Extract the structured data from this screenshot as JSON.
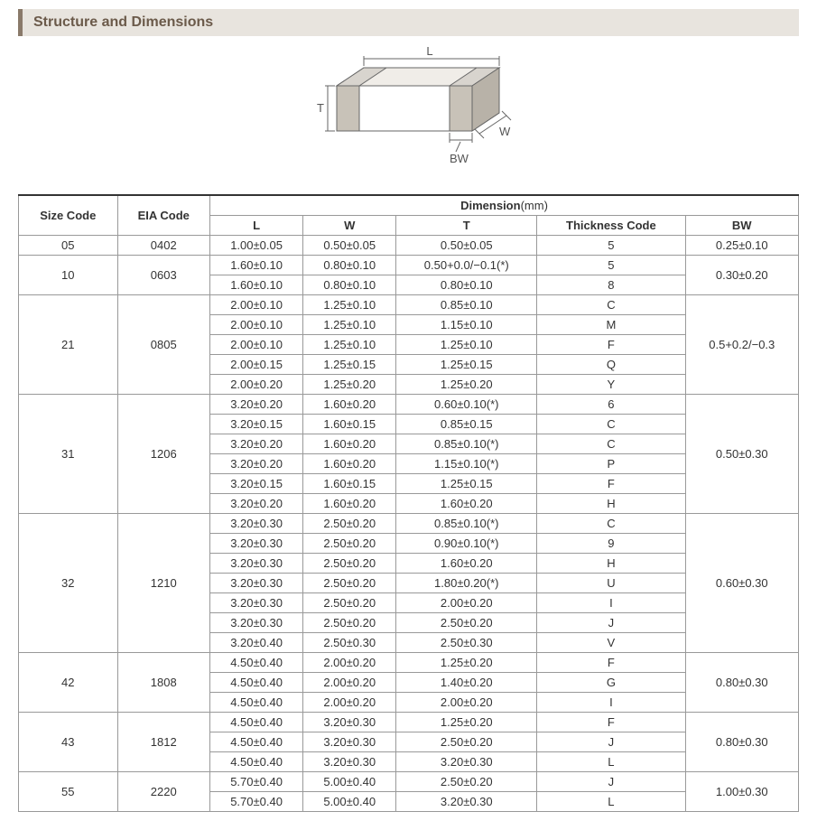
{
  "section_title": "Structure and Dimensions",
  "diagram": {
    "labels": {
      "L": "L",
      "W": "W",
      "T": "T",
      "BW": "BW"
    },
    "stroke_color": "#666666",
    "fill_color": "#f0ede8",
    "text_color": "#555555"
  },
  "table": {
    "headers": {
      "size_code": "Size Code",
      "eia_code": "EIA Code",
      "dimension_group": "Dimension",
      "dimension_unit": "(mm)",
      "L": "L",
      "W": "W",
      "T": "T",
      "thickness_code": "Thickness Code",
      "BW": "BW"
    },
    "groups": [
      {
        "size_code": "05",
        "eia_code": "0402",
        "bw": "0.25±0.10",
        "rows": [
          {
            "L": "1.00±0.05",
            "W": "0.50±0.05",
            "T": "0.50±0.05",
            "tc": "5"
          }
        ]
      },
      {
        "size_code": "10",
        "eia_code": "0603",
        "bw": "0.30±0.20",
        "rows": [
          {
            "L": "1.60±0.10",
            "W": "0.80±0.10",
            "T": "0.50+0.0/−0.1(*)",
            "tc": "5"
          },
          {
            "L": "1.60±0.10",
            "W": "0.80±0.10",
            "T": "0.80±0.10",
            "tc": "8"
          }
        ]
      },
      {
        "size_code": "21",
        "eia_code": "0805",
        "bw": "0.5+0.2/−0.3",
        "rows": [
          {
            "L": "2.00±0.10",
            "W": "1.25±0.10",
            "T": "0.85±0.10",
            "tc": "C"
          },
          {
            "L": "2.00±0.10",
            "W": "1.25±0.10",
            "T": "1.15±0.10",
            "tc": "M"
          },
          {
            "L": "2.00±0.10",
            "W": "1.25±0.10",
            "T": "1.25±0.10",
            "tc": "F"
          },
          {
            "L": "2.00±0.15",
            "W": "1.25±0.15",
            "T": "1.25±0.15",
            "tc": "Q"
          },
          {
            "L": "2.00±0.20",
            "W": "1.25±0.20",
            "T": "1.25±0.20",
            "tc": "Y"
          }
        ]
      },
      {
        "size_code": "31",
        "eia_code": "1206",
        "bw": "0.50±0.30",
        "rows": [
          {
            "L": "3.20±0.20",
            "W": "1.60±0.20",
            "T": "0.60±0.10(*)",
            "tc": "6"
          },
          {
            "L": "3.20±0.15",
            "W": "1.60±0.15",
            "T": "0.85±0.15",
            "tc": "C"
          },
          {
            "L": "3.20±0.20",
            "W": "1.60±0.20",
            "T": "0.85±0.10(*)",
            "tc": "C"
          },
          {
            "L": "3.20±0.20",
            "W": "1.60±0.20",
            "T": "1.15±0.10(*)",
            "tc": "P"
          },
          {
            "L": "3.20±0.15",
            "W": "1.60±0.15",
            "T": "1.25±0.15",
            "tc": "F"
          },
          {
            "L": "3.20±0.20",
            "W": "1.60±0.20",
            "T": "1.60±0.20",
            "tc": "H"
          }
        ]
      },
      {
        "size_code": "32",
        "eia_code": "1210",
        "bw": "0.60±0.30",
        "rows": [
          {
            "L": "3.20±0.30",
            "W": "2.50±0.20",
            "T": "0.85±0.10(*)",
            "tc": "C"
          },
          {
            "L": "3.20±0.30",
            "W": "2.50±0.20",
            "T": "0.90±0.10(*)",
            "tc": "9"
          },
          {
            "L": "3.20±0.30",
            "W": "2.50±0.20",
            "T": "1.60±0.20",
            "tc": "H"
          },
          {
            "L": "3.20±0.30",
            "W": "2.50±0.20",
            "T": "1.80±0.20(*)",
            "tc": "U"
          },
          {
            "L": "3.20±0.30",
            "W": "2.50±0.20",
            "T": "2.00±0.20",
            "tc": "I"
          },
          {
            "L": "3.20±0.30",
            "W": "2.50±0.20",
            "T": "2.50±0.20",
            "tc": "J"
          },
          {
            "L": "3.20±0.40",
            "W": "2.50±0.30",
            "T": "2.50±0.30",
            "tc": "V"
          }
        ]
      },
      {
        "size_code": "42",
        "eia_code": "1808",
        "bw": "0.80±0.30",
        "rows": [
          {
            "L": "4.50±0.40",
            "W": "2.00±0.20",
            "T": "1.25±0.20",
            "tc": "F"
          },
          {
            "L": "4.50±0.40",
            "W": "2.00±0.20",
            "T": "1.40±0.20",
            "tc": "G"
          },
          {
            "L": "4.50±0.40",
            "W": "2.00±0.20",
            "T": "2.00±0.20",
            "tc": "I"
          }
        ]
      },
      {
        "size_code": "43",
        "eia_code": "1812",
        "bw": "0.80±0.30",
        "rows": [
          {
            "L": "4.50±0.40",
            "W": "3.20±0.30",
            "T": "1.25±0.20",
            "tc": "F"
          },
          {
            "L": "4.50±0.40",
            "W": "3.20±0.30",
            "T": "2.50±0.20",
            "tc": "J"
          },
          {
            "L": "4.50±0.40",
            "W": "3.20±0.30",
            "T": "3.20±0.30",
            "tc": "L"
          }
        ]
      },
      {
        "size_code": "55",
        "eia_code": "2220",
        "bw": "1.00±0.30",
        "rows": [
          {
            "L": "5.70±0.40",
            "W": "5.00±0.40",
            "T": "2.50±0.20",
            "tc": "J"
          },
          {
            "L": "5.70±0.40",
            "W": "5.00±0.40",
            "T": "3.20±0.30",
            "tc": "L"
          }
        ]
      }
    ]
  }
}
